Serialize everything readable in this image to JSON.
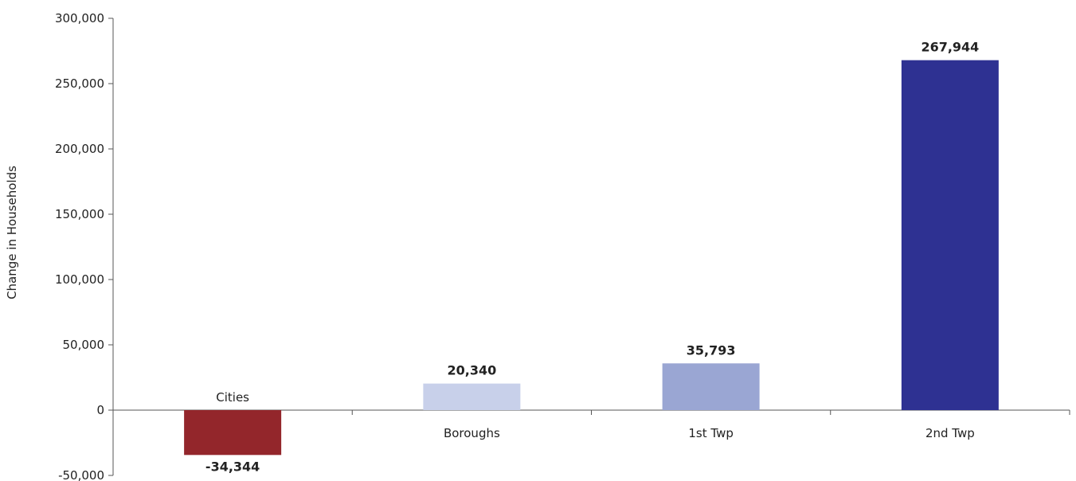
{
  "chart_data": {
    "type": "bar",
    "categories": [
      "Cities",
      "Boroughs",
      "1st Twp",
      "2nd Twp"
    ],
    "values": [
      -34344,
      20340,
      35793,
      267944
    ],
    "value_labels": [
      "-34,344",
      "20,340",
      "35,793",
      "267,944"
    ],
    "colors": [
      "#93262b",
      "#c8d0ea",
      "#9aa6d3",
      "#2e3192"
    ],
    "ylabel": "Change in Households",
    "xlabel": "",
    "ylim": [
      -50000,
      300000
    ],
    "yticks": [
      -50000,
      0,
      50000,
      100000,
      150000,
      200000,
      250000,
      300000
    ],
    "ytick_labels": [
      "-50,000",
      "0",
      "50,000",
      "100,000",
      "150,000",
      "200,000",
      "250,000",
      "300,000"
    ],
    "grid": false,
    "legend": "none"
  }
}
